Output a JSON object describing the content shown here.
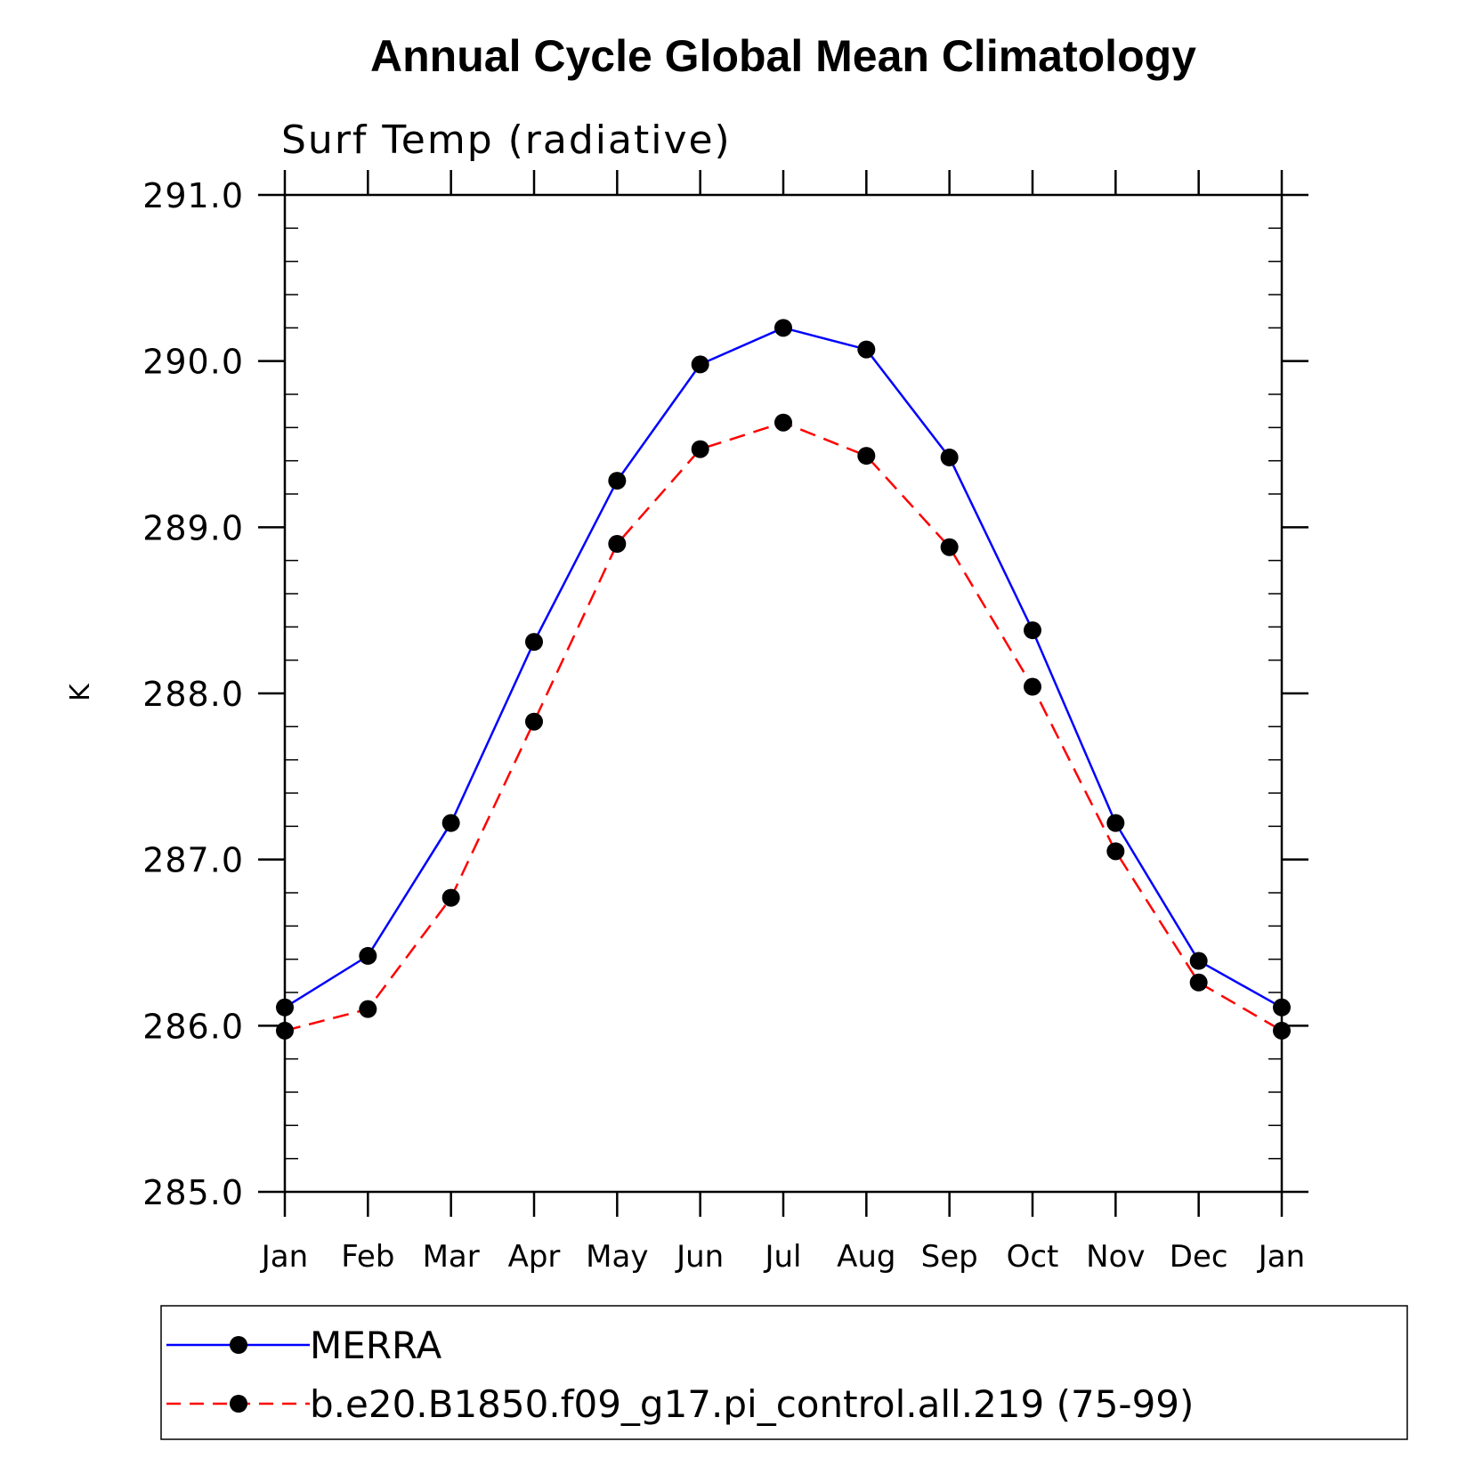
{
  "chart_data": {
    "type": "line",
    "title": "Annual Cycle Global Mean Climatology",
    "subtitle": "Surf Temp (radiative)",
    "ylabel": "K",
    "xlabel": "",
    "categories": [
      "Jan",
      "Feb",
      "Mar",
      "Apr",
      "May",
      "Jun",
      "Jul",
      "Aug",
      "Sep",
      "Oct",
      "Nov",
      "Dec",
      "Jan"
    ],
    "ylim": [
      285.0,
      291.0
    ],
    "yticks": [
      "285.0",
      "286.0",
      "287.0",
      "288.0",
      "289.0",
      "290.0",
      "291.0"
    ],
    "ytick_values": [
      285.0,
      286.0,
      287.0,
      288.0,
      289.0,
      290.0,
      291.0
    ],
    "grid": false,
    "legend_position": "bottom",
    "series": [
      {
        "name": "MERRA",
        "color": "#0000ff",
        "line_style": "solid",
        "values": [
          286.11,
          286.42,
          287.22,
          288.31,
          289.28,
          289.98,
          290.2,
          290.07,
          289.42,
          288.38,
          287.22,
          286.39,
          286.11
        ]
      },
      {
        "name": "b.e20.B1850.f09_g17.pi_control.all.219 (75-99)",
        "color": "#ff0000",
        "line_style": "dashed",
        "values": [
          285.97,
          286.1,
          286.77,
          287.83,
          288.9,
          289.47,
          289.63,
          289.43,
          288.88,
          288.04,
          287.05,
          286.26,
          285.97
        ]
      }
    ],
    "marker_color": "#000000"
  }
}
